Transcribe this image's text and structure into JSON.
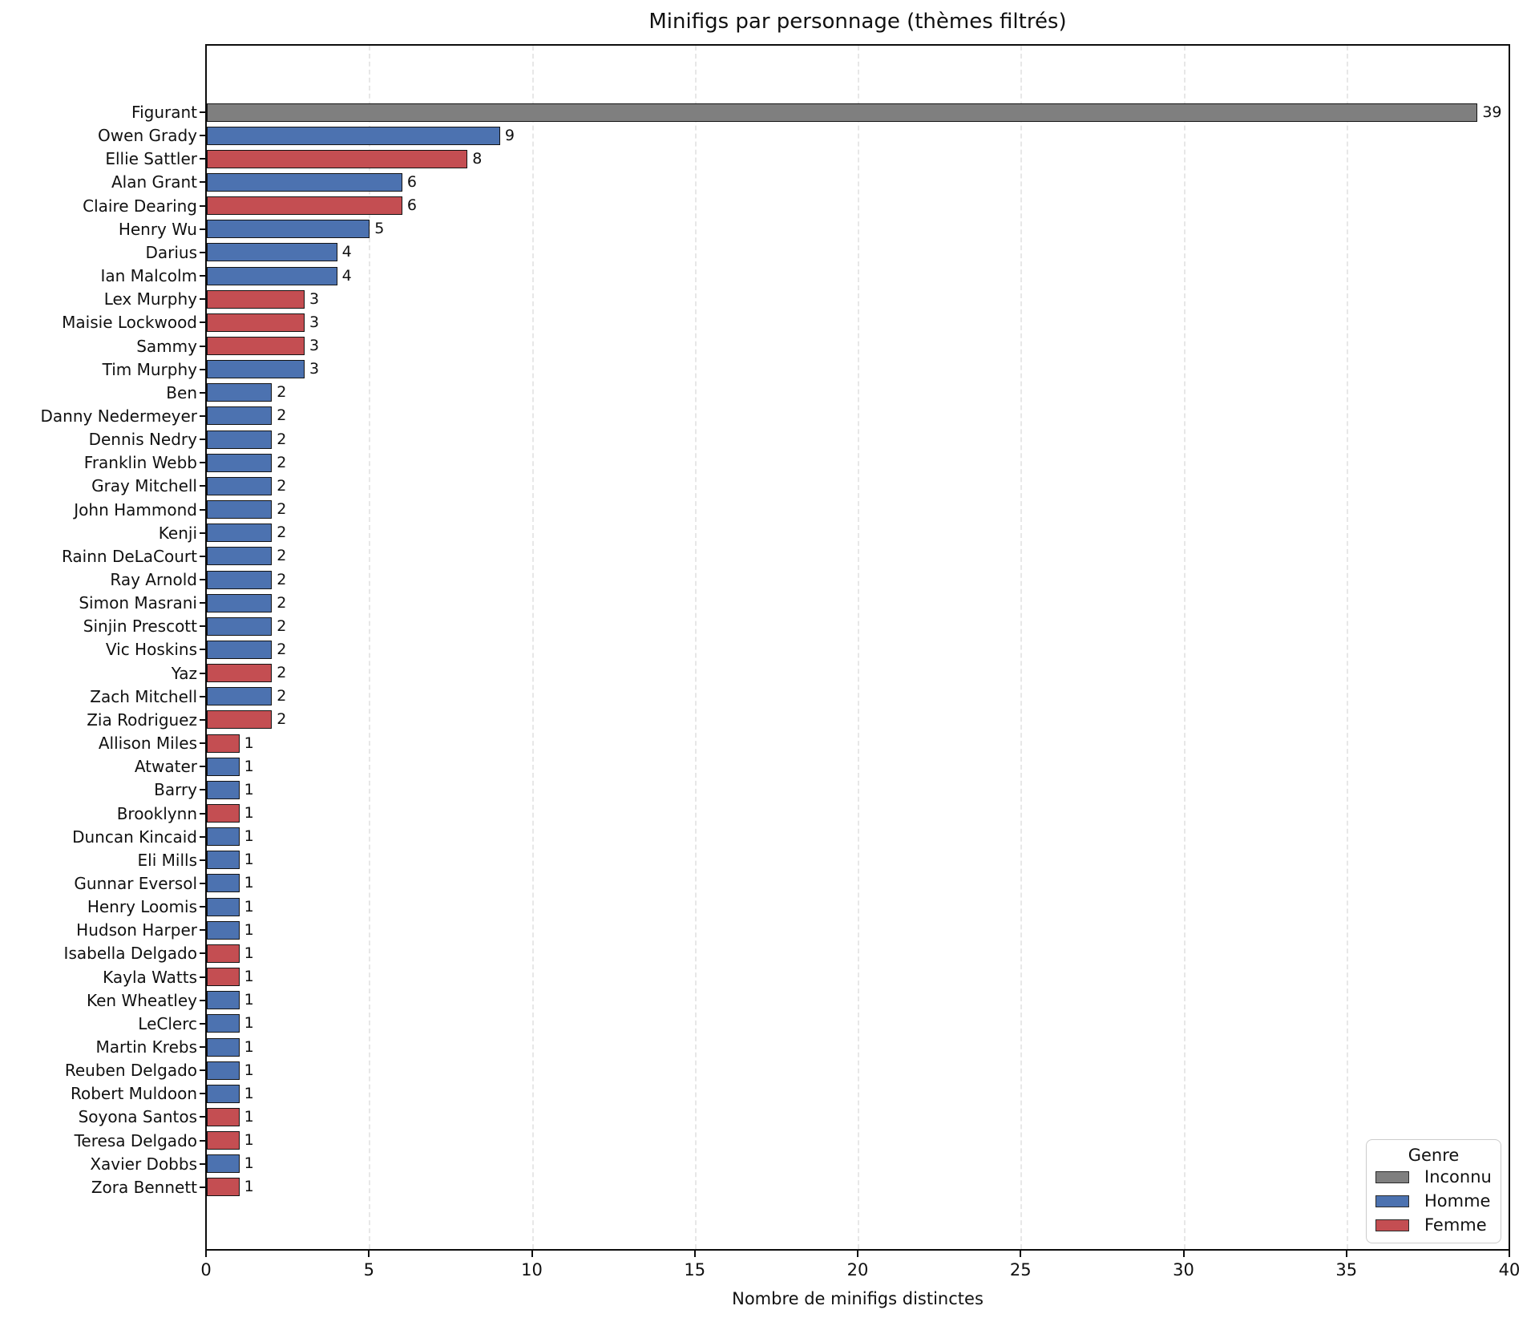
{
  "chart_data": {
    "type": "bar",
    "orientation": "horizontal",
    "title": "Minifigs par personnage (thèmes filtrés)",
    "xlabel": "Nombre de minifigs distinctes",
    "ylabel": "",
    "xlim": [
      0,
      40
    ],
    "xticks": [
      0,
      5,
      10,
      15,
      20,
      25,
      30,
      35,
      40
    ],
    "grid": "vertical-dashed",
    "legend": {
      "title": "Genre",
      "position": "lower-right",
      "entries": [
        {
          "label": "Inconnu",
          "color": "#7f7f7f"
        },
        {
          "label": "Homme",
          "color": "#4c72b0"
        },
        {
          "label": "Femme",
          "color": "#c44e52"
        }
      ]
    },
    "genre_colors": {
      "Inconnu": "#7f7f7f",
      "Homme": "#4c72b0",
      "Femme": "#c44e52"
    },
    "bar_edge_color": "#141414",
    "bars": [
      {
        "label": "Figurant",
        "value": 39,
        "genre": "Inconnu"
      },
      {
        "label": "Owen Grady",
        "value": 9,
        "genre": "Homme"
      },
      {
        "label": "Ellie Sattler",
        "value": 8,
        "genre": "Femme"
      },
      {
        "label": "Alan Grant",
        "value": 6,
        "genre": "Homme"
      },
      {
        "label": "Claire Dearing",
        "value": 6,
        "genre": "Femme"
      },
      {
        "label": "Henry Wu",
        "value": 5,
        "genre": "Homme"
      },
      {
        "label": "Darius",
        "value": 4,
        "genre": "Homme"
      },
      {
        "label": "Ian Malcolm",
        "value": 4,
        "genre": "Homme"
      },
      {
        "label": "Lex Murphy",
        "value": 3,
        "genre": "Femme"
      },
      {
        "label": "Maisie Lockwood",
        "value": 3,
        "genre": "Femme"
      },
      {
        "label": "Sammy",
        "value": 3,
        "genre": "Femme"
      },
      {
        "label": "Tim Murphy",
        "value": 3,
        "genre": "Homme"
      },
      {
        "label": "Ben",
        "value": 2,
        "genre": "Homme"
      },
      {
        "label": "Danny Nedermeyer",
        "value": 2,
        "genre": "Homme"
      },
      {
        "label": "Dennis Nedry",
        "value": 2,
        "genre": "Homme"
      },
      {
        "label": "Franklin Webb",
        "value": 2,
        "genre": "Homme"
      },
      {
        "label": "Gray Mitchell",
        "value": 2,
        "genre": "Homme"
      },
      {
        "label": "John Hammond",
        "value": 2,
        "genre": "Homme"
      },
      {
        "label": "Kenji",
        "value": 2,
        "genre": "Homme"
      },
      {
        "label": "Rainn DeLaCourt",
        "value": 2,
        "genre": "Homme"
      },
      {
        "label": "Ray Arnold",
        "value": 2,
        "genre": "Homme"
      },
      {
        "label": "Simon Masrani",
        "value": 2,
        "genre": "Homme"
      },
      {
        "label": "Sinjin Prescott",
        "value": 2,
        "genre": "Homme"
      },
      {
        "label": "Vic Hoskins",
        "value": 2,
        "genre": "Homme"
      },
      {
        "label": "Yaz",
        "value": 2,
        "genre": "Femme"
      },
      {
        "label": "Zach Mitchell",
        "value": 2,
        "genre": "Homme"
      },
      {
        "label": "Zia Rodriguez",
        "value": 2,
        "genre": "Femme"
      },
      {
        "label": "Allison Miles",
        "value": 1,
        "genre": "Femme"
      },
      {
        "label": "Atwater",
        "value": 1,
        "genre": "Homme"
      },
      {
        "label": "Barry",
        "value": 1,
        "genre": "Homme"
      },
      {
        "label": "Brooklynn",
        "value": 1,
        "genre": "Femme"
      },
      {
        "label": "Duncan Kincaid",
        "value": 1,
        "genre": "Homme"
      },
      {
        "label": "Eli Mills",
        "value": 1,
        "genre": "Homme"
      },
      {
        "label": "Gunnar Eversol",
        "value": 1,
        "genre": "Homme"
      },
      {
        "label": "Henry Loomis",
        "value": 1,
        "genre": "Homme"
      },
      {
        "label": "Hudson Harper",
        "value": 1,
        "genre": "Homme"
      },
      {
        "label": "Isabella Delgado",
        "value": 1,
        "genre": "Femme"
      },
      {
        "label": "Kayla Watts",
        "value": 1,
        "genre": "Femme"
      },
      {
        "label": "Ken Wheatley",
        "value": 1,
        "genre": "Homme"
      },
      {
        "label": "LeClerc",
        "value": 1,
        "genre": "Homme"
      },
      {
        "label": "Martin Krebs",
        "value": 1,
        "genre": "Homme"
      },
      {
        "label": "Reuben Delgado",
        "value": 1,
        "genre": "Homme"
      },
      {
        "label": "Robert Muldoon",
        "value": 1,
        "genre": "Homme"
      },
      {
        "label": "Soyona Santos",
        "value": 1,
        "genre": "Femme"
      },
      {
        "label": "Teresa Delgado",
        "value": 1,
        "genre": "Femme"
      },
      {
        "label": "Xavier Dobbs",
        "value": 1,
        "genre": "Homme"
      },
      {
        "label": "Zora Bennett",
        "value": 1,
        "genre": "Femme"
      }
    ]
  }
}
